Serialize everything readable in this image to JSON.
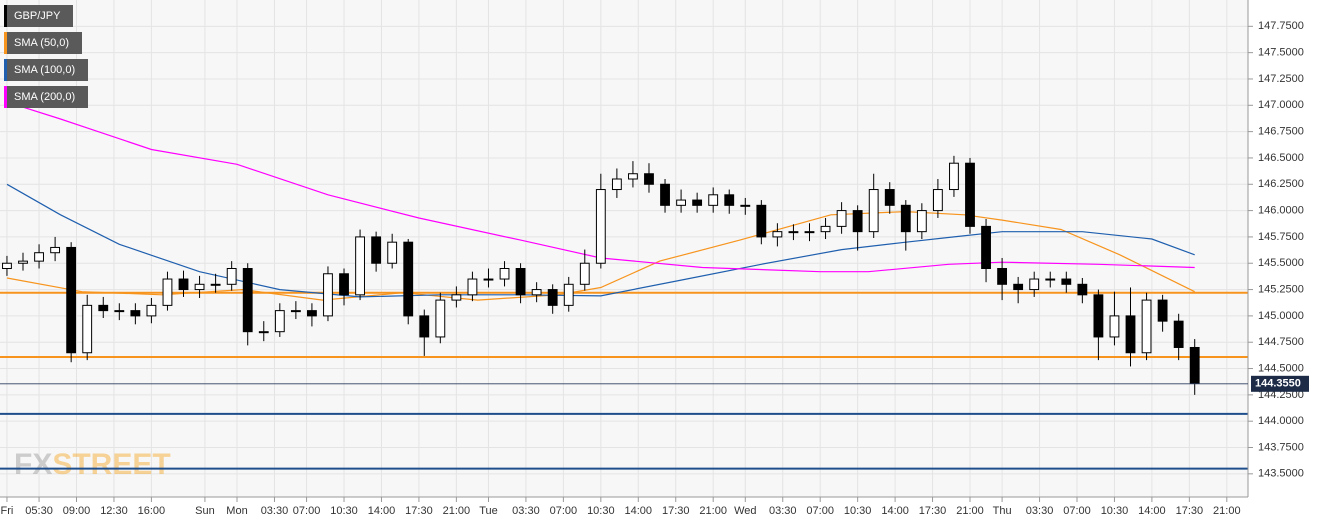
{
  "chart_data": {
    "type": "candlestick",
    "legend": "top-left",
    "grid": true,
    "ylim": [
      143.28,
      148.0
    ],
    "yticks": [
      {
        "value": 143.5,
        "label": "143.5000"
      },
      {
        "value": 143.75,
        "label": "143.7500"
      },
      {
        "value": 144.0,
        "label": "144.0000"
      },
      {
        "value": 144.25,
        "label": "144.2500"
      },
      {
        "value": 144.5,
        "label": "144.5000"
      },
      {
        "value": 144.75,
        "label": "144.7500"
      },
      {
        "value": 145.0,
        "label": "145.0000"
      },
      {
        "value": 145.25,
        "label": "145.2500"
      },
      {
        "value": 145.5,
        "label": "145.5000"
      },
      {
        "value": 145.75,
        "label": "145.7500"
      },
      {
        "value": 146.0,
        "label": "146.0000"
      },
      {
        "value": 146.25,
        "label": "146.2500"
      },
      {
        "value": 146.5,
        "label": "146.5000"
      },
      {
        "value": 146.75,
        "label": "146.7500"
      },
      {
        "value": 147.0,
        "label": "147.0000"
      },
      {
        "value": 147.25,
        "label": "147.2500"
      },
      {
        "value": 147.5,
        "label": "147.5000"
      },
      {
        "value": 147.75,
        "label": "147.7500"
      }
    ],
    "xlim": [
      -1.3,
      231.4
    ],
    "xticks": [
      {
        "value": 0,
        "label": "Fri"
      },
      {
        "value": 6,
        "label": "05:30"
      },
      {
        "value": 13,
        "label": "09:00"
      },
      {
        "value": 20,
        "label": "12:30"
      },
      {
        "value": 27,
        "label": "16:00"
      },
      {
        "value": 37,
        "label": "Sun"
      },
      {
        "value": 43,
        "label": "Mon"
      },
      {
        "value": 50,
        "label": "03:30"
      },
      {
        "value": 56,
        "label": "07:00"
      },
      {
        "value": 63,
        "label": "10:30"
      },
      {
        "value": 70,
        "label": "14:00"
      },
      {
        "value": 77,
        "label": "17:30"
      },
      {
        "value": 84,
        "label": "21:00"
      },
      {
        "value": 90,
        "label": "Tue"
      },
      {
        "value": 97,
        "label": "03:30"
      },
      {
        "value": 104,
        "label": "07:00"
      },
      {
        "value": 111,
        "label": "10:30"
      },
      {
        "value": 118,
        "label": "14:00"
      },
      {
        "value": 125,
        "label": "17:30"
      },
      {
        "value": 132,
        "label": "21:00"
      },
      {
        "value": 138,
        "label": "Wed"
      },
      {
        "value": 145,
        "label": "03:30"
      },
      {
        "value": 152,
        "label": "07:00"
      },
      {
        "value": 159,
        "label": "10:30"
      },
      {
        "value": 166,
        "label": "14:00"
      },
      {
        "value": 173,
        "label": "17:30"
      },
      {
        "value": 180,
        "label": "21:00"
      },
      {
        "value": 186,
        "label": "Thu"
      },
      {
        "value": 193,
        "label": "03:30"
      },
      {
        "value": 200,
        "label": "07:00"
      },
      {
        "value": 207,
        "label": "10:30"
      },
      {
        "value": 214,
        "label": "14:00"
      },
      {
        "value": 221,
        "label": "17:30"
      },
      {
        "value": 228,
        "label": "21:00"
      }
    ],
    "candles": {
      "name": "GBP/JPY",
      "color": "#000000",
      "x": [
        0,
        3,
        6,
        9,
        12,
        15,
        18,
        21,
        24,
        27,
        30,
        33,
        36,
        39,
        42,
        45,
        48,
        51,
        54,
        57,
        60,
        63,
        66,
        69,
        72,
        75,
        78,
        81,
        84,
        87,
        90,
        93,
        96,
        99,
        102,
        105,
        108,
        111,
        114,
        117,
        120,
        123,
        126,
        129,
        132,
        135,
        138,
        141,
        144,
        147,
        150,
        153,
        156,
        159,
        162,
        165,
        168,
        171,
        174,
        177,
        180,
        183,
        186,
        189,
        192,
        195,
        198,
        201,
        204,
        207,
        210,
        213,
        216,
        219,
        222
      ],
      "open": [
        145.45,
        145.5,
        145.52,
        145.6,
        145.65,
        144.65,
        145.1,
        145.05,
        145.05,
        145.0,
        145.1,
        145.35,
        145.25,
        145.3,
        145.3,
        145.45,
        144.85,
        144.85,
        145.05,
        145.05,
        145.0,
        145.4,
        145.2,
        145.75,
        145.5,
        145.7,
        145.0,
        144.8,
        145.15,
        145.2,
        145.35,
        145.35,
        145.45,
        145.2,
        145.25,
        145.1,
        145.3,
        145.5,
        146.2,
        146.3,
        146.35,
        146.25,
        146.05,
        146.1,
        146.05,
        146.15,
        146.05,
        146.05,
        145.75,
        145.8,
        145.8,
        145.8,
        145.85,
        146.0,
        145.8,
        146.2,
        146.05,
        145.8,
        146.0,
        146.2,
        146.45,
        145.85,
        145.45,
        145.3,
        145.25,
        145.35,
        145.35,
        145.3,
        145.2,
        144.8,
        145.0,
        144.65,
        145.15,
        144.95,
        144.7
      ],
      "high": [
        145.57,
        145.6,
        145.68,
        145.75,
        145.7,
        145.2,
        145.18,
        145.12,
        145.12,
        145.17,
        145.42,
        145.43,
        145.38,
        145.4,
        145.52,
        145.5,
        144.95,
        145.12,
        145.14,
        145.12,
        145.47,
        145.45,
        145.82,
        145.8,
        145.78,
        145.73,
        145.06,
        145.22,
        145.28,
        145.42,
        145.45,
        145.52,
        145.5,
        145.32,
        145.3,
        145.37,
        145.63,
        146.35,
        146.4,
        146.47,
        146.45,
        146.3,
        146.2,
        146.17,
        146.22,
        146.2,
        146.12,
        146.1,
        145.88,
        145.87,
        145.88,
        145.93,
        146.08,
        146.05,
        146.35,
        146.27,
        146.1,
        146.07,
        146.3,
        146.52,
        146.5,
        145.92,
        145.55,
        145.37,
        145.42,
        145.42,
        145.42,
        145.36,
        145.25,
        145.23,
        145.27,
        145.22,
        145.2,
        145.02,
        144.78
      ],
      "low": [
        145.38,
        145.43,
        145.45,
        145.52,
        144.56,
        144.58,
        144.98,
        144.96,
        144.92,
        144.93,
        145.05,
        145.18,
        145.17,
        145.22,
        145.24,
        144.72,
        144.76,
        144.8,
        144.97,
        144.9,
        144.95,
        145.1,
        145.15,
        145.42,
        145.45,
        144.92,
        144.62,
        144.74,
        145.08,
        145.14,
        145.27,
        145.28,
        145.12,
        145.13,
        145.02,
        145.04,
        145.24,
        145.45,
        146.12,
        146.22,
        146.17,
        145.98,
        145.98,
        145.98,
        145.98,
        145.97,
        145.96,
        145.68,
        145.66,
        145.72,
        145.71,
        145.73,
        145.78,
        145.62,
        145.74,
        145.97,
        145.62,
        145.73,
        145.93,
        146.13,
        145.78,
        145.32,
        145.15,
        145.12,
        145.18,
        145.27,
        145.22,
        145.12,
        144.58,
        144.72,
        144.52,
        144.58,
        144.85,
        144.58,
        144.25
      ],
      "close": [
        145.5,
        145.52,
        145.6,
        145.65,
        144.65,
        145.1,
        145.05,
        145.05,
        145.0,
        145.1,
        145.35,
        145.25,
        145.3,
        145.3,
        145.45,
        144.85,
        144.85,
        145.05,
        145.05,
        145.0,
        145.4,
        145.2,
        145.75,
        145.5,
        145.7,
        145.0,
        144.8,
        145.15,
        145.2,
        145.35,
        145.35,
        145.45,
        145.2,
        145.25,
        145.1,
        145.3,
        145.5,
        146.2,
        146.3,
        146.35,
        146.25,
        146.05,
        146.1,
        146.05,
        146.15,
        146.05,
        146.05,
        145.75,
        145.8,
        145.8,
        145.8,
        145.85,
        146.0,
        145.8,
        146.2,
        146.05,
        145.8,
        146.0,
        146.2,
        146.45,
        145.85,
        145.45,
        145.3,
        145.25,
        145.35,
        145.35,
        145.3,
        145.2,
        144.8,
        145.0,
        144.65,
        145.15,
        144.95,
        144.7,
        144.36
      ]
    },
    "series": [
      {
        "name": "SMA (50,0)",
        "color": "#f7941d",
        "x": [
          0,
          14,
          29,
          44,
          59,
          74,
          88,
          103,
          111,
          122,
          137,
          154,
          168,
          179,
          186,
          197,
          208,
          222
        ],
        "values": [
          145.36,
          145.23,
          145.2,
          145.25,
          145.15,
          145.22,
          145.15,
          145.2,
          145.27,
          145.52,
          145.72,
          145.96,
          145.99,
          145.96,
          145.91,
          145.82,
          145.58,
          145.23
        ]
      },
      {
        "name": "SMA (100,0)",
        "color": "#1f5fae",
        "x": [
          0,
          10,
          21,
          36,
          51,
          66,
          81,
          96,
          111,
          126,
          141,
          156,
          168,
          177,
          186,
          201,
          214,
          222
        ],
        "values": [
          146.25,
          145.96,
          145.68,
          145.42,
          145.25,
          145.18,
          145.2,
          145.2,
          145.19,
          145.34,
          145.49,
          145.63,
          145.7,
          145.75,
          145.8,
          145.8,
          145.73,
          145.58
        ]
      },
      {
        "name": "SMA (200,0)",
        "color": "#ff00ff",
        "x": [
          0,
          10,
          27,
          43,
          60,
          77,
          96,
          111,
          130,
          152,
          161,
          176,
          186,
          204,
          222
        ],
        "values": [
          147.03,
          146.87,
          146.58,
          146.44,
          146.15,
          145.93,
          145.72,
          145.55,
          145.46,
          145.42,
          145.42,
          145.49,
          145.51,
          145.49,
          145.46
        ]
      }
    ],
    "levels": [
      {
        "value": 145.22,
        "color": "#f7941d"
      },
      {
        "value": 144.61,
        "color": "#f7941d"
      },
      {
        "value": 144.07,
        "color": "#1f4e8c"
      },
      {
        "value": 143.55,
        "color": "#1f4e8c"
      }
    ],
    "last_price": {
      "value": 144.355,
      "label": "144.3550"
    },
    "watermark": [
      "FX",
      "STREET"
    ]
  }
}
